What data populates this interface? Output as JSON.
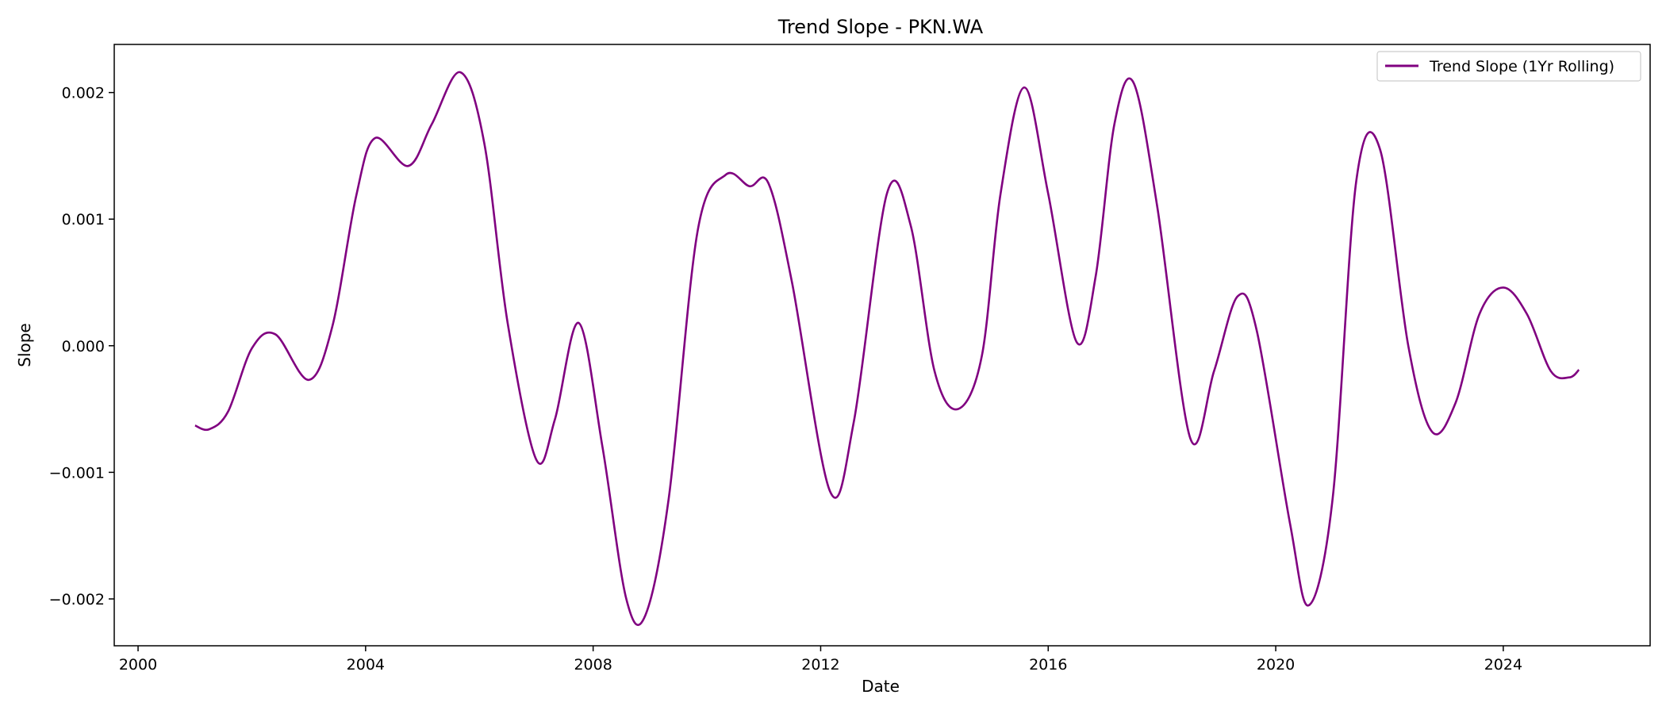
{
  "chart_data": {
    "type": "line",
    "title": "Trend Slope - PKN.WA",
    "xlabel": "Date",
    "ylabel": "Slope",
    "xlim": [
      "1999-08-01",
      "2026-08-01"
    ],
    "ylim": [
      -0.00237,
      0.00238
    ],
    "x_ticks": [
      "2000",
      "2004",
      "2008",
      "2012",
      "2016",
      "2020",
      "2024"
    ],
    "y_ticks": [
      "−0.002",
      "−0.001",
      "0.000",
      "0.001",
      "0.002"
    ],
    "y_tick_values": [
      -0.002,
      -0.001,
      0.0,
      0.001,
      0.002
    ],
    "grid": false,
    "legend_position": "top-right",
    "series": [
      {
        "name": "Trend Slope (1Yr Rolling)",
        "color": "#800080",
        "x": [
          "2001-01-01",
          "2001-04-01",
          "2001-08-01",
          "2002-01-01",
          "2002-06-01",
          "2003-01-01",
          "2003-06-01",
          "2003-11-01",
          "2004-03-01",
          "2004-10-01",
          "2005-03-01",
          "2005-09-01",
          "2006-02-01",
          "2006-07-01",
          "2007-01-01",
          "2007-05-01",
          "2007-10-01",
          "2008-03-01",
          "2008-08-01",
          "2008-12-01",
          "2009-05-01",
          "2009-11-01",
          "2010-05-01",
          "2010-10-01",
          "2011-02-01",
          "2011-07-01",
          "2012-03-01",
          "2012-08-01",
          "2013-03-01",
          "2013-08-01",
          "2014-01-01",
          "2014-06-01",
          "2014-11-01",
          "2015-03-01",
          "2015-08-01",
          "2016-01-01",
          "2016-07-01",
          "2016-11-01",
          "2017-03-01",
          "2017-07-01",
          "2017-12-01",
          "2018-07-01",
          "2018-12-01",
          "2019-05-01",
          "2019-09-01",
          "2020-04-01",
          "2020-08-01",
          "2021-01-01",
          "2021-06-01",
          "2021-11-01",
          "2022-05-01",
          "2022-10-01",
          "2023-03-01",
          "2023-08-01",
          "2024-01-01",
          "2024-06-01",
          "2024-11-01",
          "2025-03-01",
          "2025-05-01"
        ],
        "y": [
          -0.00063,
          -0.00066,
          -0.00052,
          -2e-05,
          9e-05,
          -0.00027,
          0.00015,
          0.00118,
          0.00164,
          0.00142,
          0.00175,
          0.00216,
          0.0016,
          0.00018,
          -0.0009,
          -0.00058,
          0.00018,
          -0.0008,
          -0.002,
          -0.00213,
          -0.0012,
          0.0009,
          0.00135,
          0.00126,
          0.00128,
          0.0005,
          -0.00115,
          -0.0006,
          0.0012,
          0.00095,
          -0.0002,
          -0.0005,
          -8e-05,
          0.0012,
          0.00204,
          0.0012,
          3e-05,
          0.00055,
          0.00175,
          0.00208,
          0.0011,
          -0.00073,
          -0.0002,
          0.00039,
          0.00012,
          -0.0014,
          -0.00205,
          -0.0012,
          0.0013,
          0.00155,
          0.0,
          -0.00068,
          -0.00045,
          0.00025,
          0.00046,
          0.00025,
          -0.0002,
          -0.00025,
          -0.00019
        ]
      }
    ]
  }
}
